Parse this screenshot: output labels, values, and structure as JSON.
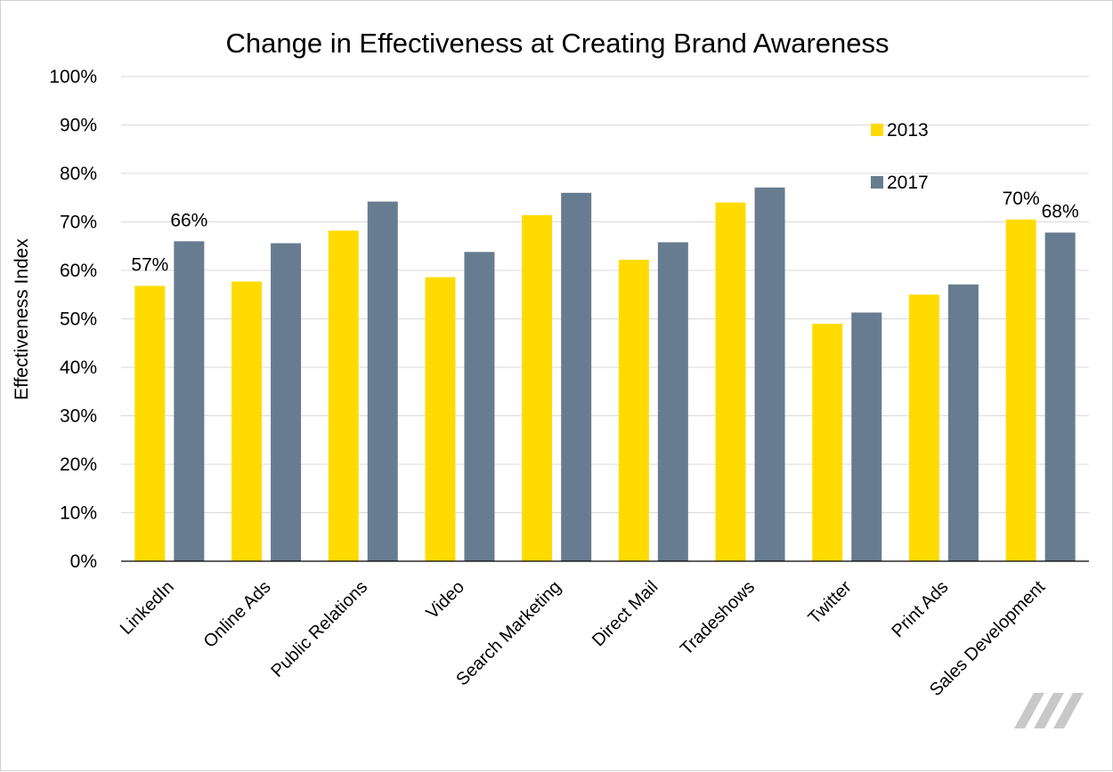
{
  "colors": {
    "series_2013": "#FFDB00",
    "series_2017": "#677C90",
    "gridline": "#D9D9D9",
    "axis": "#000000",
    "logo": "#C8C8C8"
  },
  "logo_icon": "slash-logo-icon",
  "chart_data": {
    "type": "bar",
    "title": "Change in Effectiveness at Creating Brand Awareness",
    "xlabel": "",
    "ylabel": "Effectiveness Index",
    "ylim": [
      0,
      1
    ],
    "yticks": [
      "0%",
      "10%",
      "20%",
      "30%",
      "40%",
      "50%",
      "60%",
      "70%",
      "80%",
      "90%",
      "100%"
    ],
    "grid": true,
    "legend_position": "top-right",
    "categories": [
      "LinkedIn",
      "Online Ads",
      "Public Relations",
      "Video",
      "Search Marketing",
      "Direct Mail",
      "Tradeshows",
      "Twitter",
      "Print Ads",
      "Sales Development"
    ],
    "series": [
      {
        "name": "2013",
        "values": [
          0.568,
          0.577,
          0.682,
          0.586,
          0.714,
          0.622,
          0.74,
          0.49,
          0.55,
          0.705
        ],
        "labels": [
          "57%",
          "",
          "",
          "",
          "",
          "",
          "",
          "",
          "",
          "70%"
        ]
      },
      {
        "name": "2017",
        "values": [
          0.66,
          0.656,
          0.742,
          0.638,
          0.76,
          0.658,
          0.771,
          0.513,
          0.571,
          0.678
        ],
        "labels": [
          "66%",
          "",
          "",
          "",
          "",
          "",
          "",
          "",
          "",
          "68%"
        ]
      }
    ]
  }
}
